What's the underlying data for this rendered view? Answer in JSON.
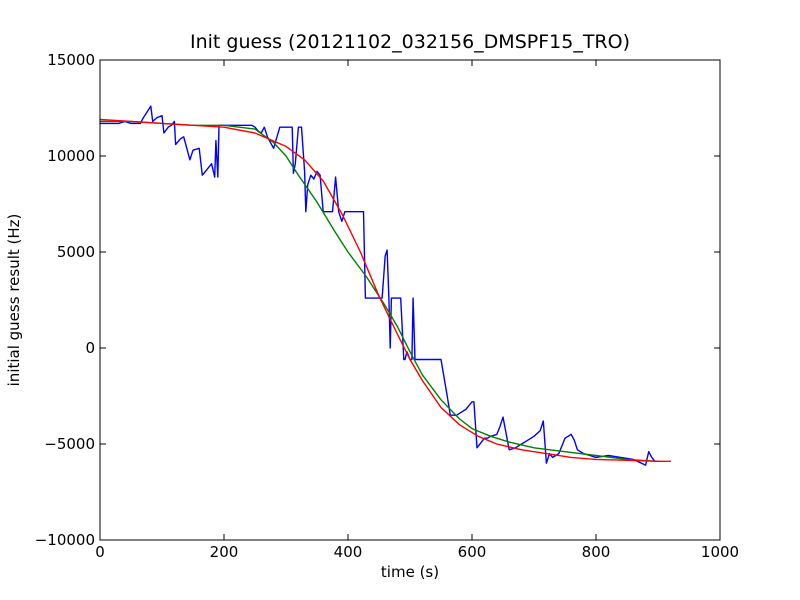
{
  "chart_data": {
    "type": "line",
    "title": "Init guess (20121102_032156_DMSPF15_TRO)",
    "xlabel": "time (s)",
    "ylabel": "initial guess result (Hz)",
    "xlim": [
      0,
      1000
    ],
    "ylim": [
      -10000,
      15000
    ],
    "xticks": [
      0,
      200,
      400,
      600,
      800,
      1000
    ],
    "yticks": [
      -10000,
      -5000,
      0,
      5000,
      10000,
      15000
    ],
    "x_tick_labels": [
      "0",
      "200",
      "400",
      "600",
      "800",
      "1000"
    ],
    "y_tick_labels": [
      "−10000",
      "−5000",
      "0",
      "5000",
      "10000",
      "15000"
    ],
    "grid": false,
    "legend": "none",
    "series": [
      {
        "color": "#0000ff",
        "x": [
          0,
          30,
          40,
          50,
          65,
          70,
          78,
          82,
          85,
          92,
          100,
          103,
          110,
          115,
          120,
          122,
          130,
          135,
          145,
          150,
          160,
          165,
          170,
          180,
          185,
          187,
          190,
          192,
          200,
          230,
          240,
          245,
          250,
          255,
          260,
          265,
          270,
          280,
          290,
          292,
          295,
          300,
          310,
          312,
          315,
          320,
          325,
          330,
          332,
          335,
          340,
          345,
          350,
          355,
          360,
          370,
          375,
          380,
          385,
          390,
          395,
          400,
          405,
          410,
          420,
          425,
          428,
          430,
          440,
          450,
          455,
          460,
          463,
          466,
          468,
          470,
          475,
          480,
          485,
          490,
          492,
          495,
          500,
          503,
          505,
          508,
          510,
          515,
          520,
          530,
          540,
          545,
          550,
          560,
          565,
          570,
          575,
          580,
          590,
          600,
          603,
          608,
          620,
          625,
          630,
          640,
          645,
          650,
          660,
          670,
          680,
          690,
          700,
          710,
          715,
          720,
          725,
          730,
          740,
          750,
          755,
          760,
          765,
          770,
          780,
          790,
          800,
          820,
          840,
          860,
          880,
          885,
          890,
          895,
          900
        ],
        "y": [
          11700,
          11700,
          11800,
          11700,
          11700,
          12000,
          12400,
          12600,
          11800,
          12000,
          12100,
          11200,
          11500,
          11600,
          11800,
          10600,
          10900,
          11000,
          9800,
          10300,
          10400,
          9000,
          9200,
          9600,
          8900,
          10800,
          8900,
          11600,
          11600,
          11600,
          11600,
          11600,
          11500,
          11300,
          11200,
          11500,
          11000,
          10400,
          11500,
          11500,
          11500,
          11500,
          11500,
          9100,
          9600,
          11500,
          11500,
          9200,
          7100,
          8500,
          9000,
          8800,
          9200,
          9000,
          7100,
          7100,
          7100,
          8900,
          7100,
          6600,
          7100,
          7100,
          7100,
          7100,
          7100,
          7100,
          2600,
          2600,
          2600,
          2600,
          2600,
          4800,
          5100,
          2600,
          0,
          2600,
          2600,
          2600,
          2600,
          -600,
          -600,
          -200,
          -600,
          -600,
          2600,
          -600,
          -600,
          -600,
          -600,
          -600,
          -600,
          -600,
          -600,
          -2500,
          -3500,
          -3500,
          -3500,
          -3400,
          -3200,
          -2800,
          -2800,
          -5200,
          -4700,
          -4700,
          -4600,
          -4500,
          -4100,
          -3600,
          -5300,
          -5200,
          -5000,
          -4800,
          -4600,
          -4300,
          -3800,
          -6000,
          -5500,
          -5700,
          -5500,
          -4700,
          -4600,
          -4500,
          -4800,
          -5300,
          -5500,
          -5600,
          -5700,
          -5600,
          -5700,
          -5800,
          -6100,
          -5400,
          -5700,
          -5900,
          -5900
        ]
      },
      {
        "color": "#008000",
        "x": [
          0,
          50,
          100,
          150,
          200,
          250,
          280,
          300,
          320,
          350,
          380,
          400,
          430,
          460,
          480,
          500,
          520,
          550,
          580,
          600,
          630,
          660,
          700,
          750,
          800,
          850,
          900
        ],
        "y": [
          11800,
          11800,
          11700,
          11600,
          11600,
          11400,
          10700,
          10000,
          9000,
          7600,
          6000,
          5000,
          3700,
          2200,
          1100,
          -200,
          -1400,
          -2700,
          -3700,
          -4200,
          -4600,
          -4900,
          -5200,
          -5400,
          -5600,
          -5800,
          -5900
        ]
      },
      {
        "color": "#ff0000",
        "x": [
          0,
          50,
          100,
          150,
          200,
          250,
          300,
          330,
          360,
          390,
          420,
          450,
          480,
          500,
          520,
          550,
          580,
          610,
          640,
          680,
          720,
          760,
          800,
          850,
          900,
          920
        ],
        "y": [
          11900,
          11800,
          11700,
          11600,
          11500,
          11200,
          10500,
          9800,
          8700,
          7000,
          5000,
          2700,
          700,
          -600,
          -1700,
          -3100,
          -4000,
          -4600,
          -5000,
          -5300,
          -5500,
          -5700,
          -5800,
          -5850,
          -5900,
          -5900
        ]
      }
    ]
  }
}
